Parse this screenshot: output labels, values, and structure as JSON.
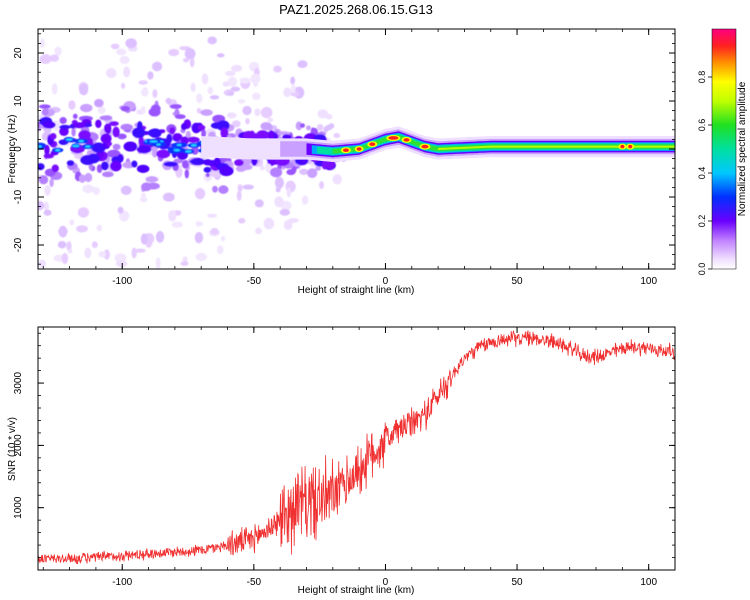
{
  "title": "PAZ1.2025.268.06.15.G13",
  "chart_data": [
    {
      "type": "heatmap",
      "name": "spectrogram",
      "xlabel": "Height of straight line (km)",
      "ylabel": "Frequency (Hz)",
      "xlim": [
        -132,
        110
      ],
      "ylim": [
        -25,
        25
      ],
      "xticks": [
        -100,
        -50,
        0,
        50,
        100
      ],
      "yticks": [
        -20,
        -10,
        0,
        10,
        20
      ],
      "colorbar": {
        "label": "Normalized spectral amplitude",
        "range": [
          0,
          1
        ],
        "ticks": [
          "0.0",
          "0.2",
          "0.4",
          "0.6",
          "0.8"
        ],
        "tick_values": [
          0.0,
          0.2,
          0.4,
          0.6,
          0.8
        ]
      },
      "ridge": {
        "description": "dominant spectral line",
        "x": [
          -130,
          -100,
          -70,
          -50,
          -30,
          -20,
          -10,
          0,
          5,
          10,
          15,
          20,
          40,
          60,
          80,
          110
        ],
        "freq": [
          1,
          0.5,
          0.5,
          0,
          0,
          -0.5,
          0,
          2,
          2.5,
          1.5,
          0.5,
          0,
          0.5,
          0.5,
          0.5,
          0.5
        ]
      }
    },
    {
      "type": "line",
      "name": "snr",
      "xlabel": "Height of straight line (km)",
      "ylabel": "SNR (10 * v/v)",
      "xlim": [
        -132,
        110
      ],
      "ylim": [
        0,
        3900
      ],
      "xticks": [
        -100,
        -50,
        0,
        50,
        100
      ],
      "yticks": [
        1000,
        2000,
        3000
      ],
      "color": "#f03030",
      "x": [
        -132,
        -120,
        -110,
        -100,
        -90,
        -80,
        -70,
        -60,
        -50,
        -45,
        -40,
        -35,
        -30,
        -25,
        -20,
        -15,
        -10,
        -5,
        0,
        5,
        10,
        15,
        20,
        25,
        30,
        35,
        40,
        45,
        50,
        55,
        60,
        65,
        70,
        75,
        80,
        85,
        90,
        95,
        100,
        105,
        110
      ],
      "y": [
        180,
        180,
        200,
        230,
        260,
        290,
        320,
        400,
        500,
        650,
        800,
        1000,
        1100,
        1100,
        1200,
        1400,
        1600,
        1850,
        2100,
        2250,
        2350,
        2500,
        2800,
        3100,
        3400,
        3560,
        3650,
        3700,
        3720,
        3720,
        3700,
        3650,
        3560,
        3440,
        3420,
        3480,
        3560,
        3580,
        3560,
        3520,
        3500
      ]
    }
  ]
}
